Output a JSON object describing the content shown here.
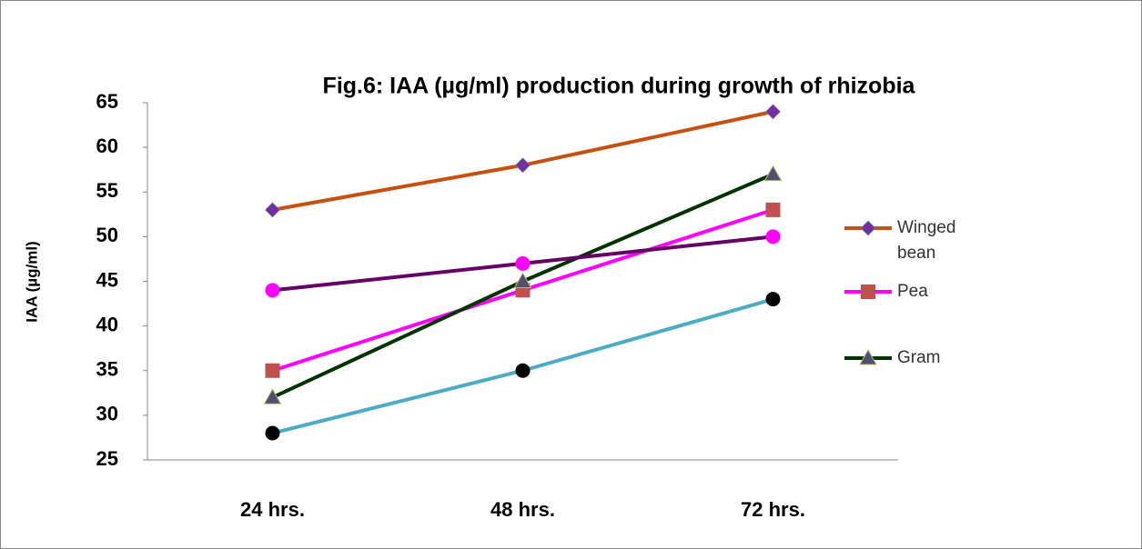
{
  "chart_data": {
    "type": "line",
    "title": "Fig.6: IAA (µg/ml) production during growth of rhizobia",
    "y_label": "IAA (µg/ml)",
    "categories": [
      "24 hrs.",
      "48 hrs.",
      "72 hrs."
    ],
    "series": [
      {
        "name": "Winged bean",
        "color": "#c8500e",
        "marker": "diamond",
        "marker_color": "#7030a0",
        "values": [
          53,
          58,
          64
        ]
      },
      {
        "name": "Pea",
        "color": "#ff00ff",
        "marker": "square",
        "marker_color": "#c0504d",
        "values": [
          35,
          44,
          53
        ]
      },
      {
        "name": "Gram",
        "color": "#003300",
        "marker": "triangle",
        "marker_color": "#4f4f6f",
        "values": [
          32,
          45,
          57
        ]
      },
      {
        "color": "#660066",
        "marker": "circle",
        "marker_color": "#ff00ff",
        "values": [
          44,
          47,
          50
        ]
      },
      {
        "color": "#4bacc6",
        "marker": "circle",
        "marker_color": "#000000",
        "values": [
          28,
          35,
          43
        ]
      }
    ],
    "ylim": [
      25,
      65
    ],
    "yticks": [
      25,
      30,
      35,
      40,
      45,
      50,
      55,
      60,
      65
    ],
    "grid": false,
    "legend": "right"
  }
}
